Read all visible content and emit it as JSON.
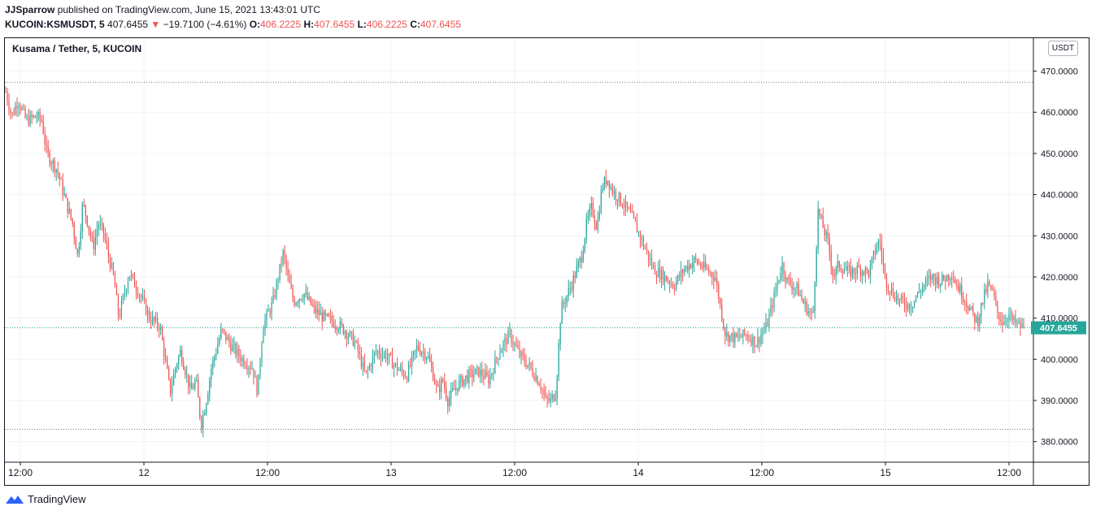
{
  "header": {
    "author": "JJSparrow",
    "published_text": "published on TradingView.com, June 15, 2021 13:43:01 UTC",
    "symbol_interval": "KUCOIN:KSMUSDT, 5",
    "last": "407.6455",
    "change": "−19.7100 (−4.61%)",
    "o_label": "O:",
    "o_value": "406.2225",
    "h_label": "H:",
    "h_value": "407.6455",
    "l_label": "L:",
    "l_value": "406.2225",
    "c_label": "C:",
    "c_value": "407.6455"
  },
  "chart_title": "Kusama / Tether, 5, KUCOIN",
  "unit_label": "USDT",
  "last_price_label": "407.6455",
  "footer": {
    "brand": "TradingView"
  },
  "colors": {
    "up": "#26a69a",
    "down": "#ef5350",
    "grid": "#f0f3fa",
    "text": "#131722"
  },
  "chart_data": {
    "type": "candlestick",
    "title": "Kusama / Tether, 5, KUCOIN",
    "ylim": [
      375,
      478
    ],
    "y_ticks": [
      "470.0000",
      "460.0000",
      "450.0000",
      "440.0000",
      "430.0000",
      "420.0000",
      "410.0000",
      "400.0000",
      "390.0000",
      "380.0000"
    ],
    "x_ticks": [
      "12:00",
      "12",
      "12:00",
      "13",
      "12:00",
      "14",
      "12:00",
      "15",
      "12:00"
    ],
    "last_price": 407.6455,
    "high_line": 467.3,
    "low_line": 383.0,
    "price_path": [
      [
        0,
        465
      ],
      [
        0.006,
        459
      ],
      [
        0.012,
        463
      ],
      [
        0.02,
        458
      ],
      [
        0.03,
        459
      ],
      [
        0.035,
        458
      ],
      [
        0.04,
        450
      ],
      [
        0.05,
        446
      ],
      [
        0.06,
        437
      ],
      [
        0.065,
        433
      ],
      [
        0.07,
        425
      ],
      [
        0.075,
        438
      ],
      [
        0.08,
        433
      ],
      [
        0.085,
        427
      ],
      [
        0.09,
        433
      ],
      [
        0.095,
        431
      ],
      [
        0.1,
        425
      ],
      [
        0.105,
        420
      ],
      [
        0.11,
        410
      ],
      [
        0.12,
        421
      ],
      [
        0.13,
        416
      ],
      [
        0.14,
        410
      ],
      [
        0.15,
        408
      ],
      [
        0.155,
        400
      ],
      [
        0.16,
        392
      ],
      [
        0.165,
        398
      ],
      [
        0.17,
        402
      ],
      [
        0.175,
        397
      ],
      [
        0.18,
        392
      ],
      [
        0.185,
        395
      ],
      [
        0.19,
        384
      ],
      [
        0.195,
        390
      ],
      [
        0.2,
        398
      ],
      [
        0.21,
        407
      ],
      [
        0.22,
        403
      ],
      [
        0.23,
        400
      ],
      [
        0.24,
        398
      ],
      [
        0.245,
        392
      ],
      [
        0.25,
        408
      ],
      [
        0.26,
        414
      ],
      [
        0.265,
        420
      ],
      [
        0.27,
        426
      ],
      [
        0.275,
        419
      ],
      [
        0.28,
        414
      ],
      [
        0.29,
        416
      ],
      [
        0.3,
        412
      ],
      [
        0.31,
        410
      ],
      [
        0.32,
        409
      ],
      [
        0.33,
        407
      ],
      [
        0.34,
        404
      ],
      [
        0.35,
        396
      ],
      [
        0.36,
        402
      ],
      [
        0.37,
        401
      ],
      [
        0.38,
        398
      ],
      [
        0.39,
        396
      ],
      [
        0.4,
        403
      ],
      [
        0.41,
        401
      ],
      [
        0.415,
        397
      ],
      [
        0.42,
        392
      ],
      [
        0.425,
        395
      ],
      [
        0.43,
        390
      ],
      [
        0.44,
        394
      ],
      [
        0.45,
        396
      ],
      [
        0.46,
        397
      ],
      [
        0.47,
        395
      ],
      [
        0.48,
        402
      ],
      [
        0.49,
        406
      ],
      [
        0.5,
        401
      ],
      [
        0.51,
        398
      ],
      [
        0.52,
        394
      ],
      [
        0.525,
        390
      ],
      [
        0.53,
        390
      ],
      [
        0.535,
        392
      ],
      [
        0.54,
        412
      ],
      [
        0.55,
        418
      ],
      [
        0.56,
        425
      ],
      [
        0.565,
        433
      ],
      [
        0.57,
        437
      ],
      [
        0.575,
        432
      ],
      [
        0.58,
        442
      ],
      [
        0.585,
        444
      ],
      [
        0.59,
        441
      ],
      [
        0.6,
        438
      ],
      [
        0.61,
        434
      ],
      [
        0.62,
        428
      ],
      [
        0.63,
        422
      ],
      [
        0.64,
        420
      ],
      [
        0.65,
        418
      ],
      [
        0.66,
        422
      ],
      [
        0.67,
        424
      ],
      [
        0.68,
        422
      ],
      [
        0.69,
        420
      ],
      [
        0.7,
        406
      ],
      [
        0.71,
        405
      ],
      [
        0.72,
        406
      ],
      [
        0.73,
        404
      ],
      [
        0.74,
        408
      ],
      [
        0.75,
        418
      ],
      [
        0.755,
        423
      ],
      [
        0.76,
        419
      ],
      [
        0.77,
        417
      ],
      [
        0.775,
        414
      ],
      [
        0.78,
        412
      ],
      [
        0.785,
        410
      ],
      [
        0.79,
        436
      ],
      [
        0.795,
        432
      ],
      [
        0.8,
        428
      ],
      [
        0.805,
        420
      ],
      [
        0.81,
        423
      ],
      [
        0.82,
        421
      ],
      [
        0.83,
        422
      ],
      [
        0.84,
        421
      ],
      [
        0.845,
        426
      ],
      [
        0.85,
        429
      ],
      [
        0.855,
        420
      ],
      [
        0.86,
        417
      ],
      [
        0.87,
        414
      ],
      [
        0.88,
        413
      ],
      [
        0.89,
        417
      ],
      [
        0.9,
        420
      ],
      [
        0.91,
        419
      ],
      [
        0.92,
        421
      ],
      [
        0.925,
        418
      ],
      [
        0.93,
        416
      ],
      [
        0.94,
        411
      ],
      [
        0.945,
        409
      ],
      [
        0.95,
        414
      ],
      [
        0.955,
        418
      ],
      [
        0.96,
        416
      ],
      [
        0.965,
        411
      ],
      [
        0.97,
        409
      ],
      [
        0.975,
        411
      ],
      [
        0.98,
        409
      ],
      [
        0.99,
        407.6455
      ]
    ]
  }
}
